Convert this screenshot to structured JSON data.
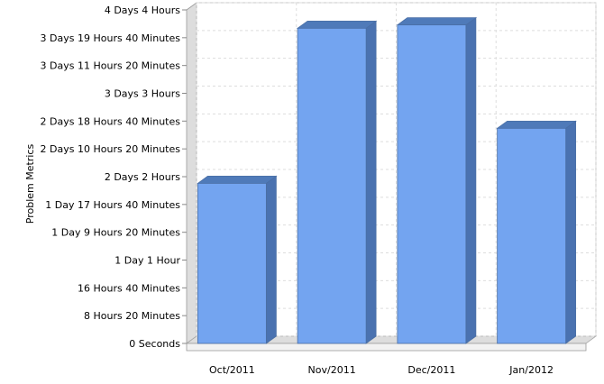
{
  "chart_data": {
    "type": "bar",
    "title": "",
    "xlabel": "",
    "ylabel": "Problem Metrics",
    "y_unit": "hours",
    "ylim": [
      0,
      100
    ],
    "y_ticks": [
      {
        "value": 0,
        "label": "0 Seconds"
      },
      {
        "value": 8.3333,
        "label": "8 Hours 20 Minutes"
      },
      {
        "value": 16.6667,
        "label": "16 Hours 40 Minutes"
      },
      {
        "value": 25,
        "label": "1 Day 1 Hour"
      },
      {
        "value": 33.3333,
        "label": "1 Day 9 Hours 20 Minutes"
      },
      {
        "value": 41.6667,
        "label": "1 Day 17 Hours 40 Minutes"
      },
      {
        "value": 50,
        "label": "2 Days 2 Hours"
      },
      {
        "value": 58.3333,
        "label": "2 Days 10 Hours 20 Minutes"
      },
      {
        "value": 66.6667,
        "label": "2 Days 18 Hours 40 Minutes"
      },
      {
        "value": 75,
        "label": "3 Days 3 Hours"
      },
      {
        "value": 83.3333,
        "label": "3 Days 11 Hours 20 Minutes"
      },
      {
        "value": 91.6667,
        "label": "3 Days 19 Hours 40 Minutes"
      },
      {
        "value": 100,
        "label": "4 Days 4 Hours"
      }
    ],
    "categories": [
      "Oct/2011",
      "Nov/2011",
      "Dec/2011",
      "Jan/2012"
    ],
    "values": [
      48,
      94.5,
      95.5,
      64.5
    ],
    "grid": true,
    "legend": "none",
    "colors": {
      "bar_front": "#73a4f0",
      "bar_side": "#4a72b0",
      "bar_top": "#4f7ab9",
      "bar_edge": "#4a6fa5",
      "grid": "#dddddd",
      "wall": "#dddddd"
    }
  }
}
